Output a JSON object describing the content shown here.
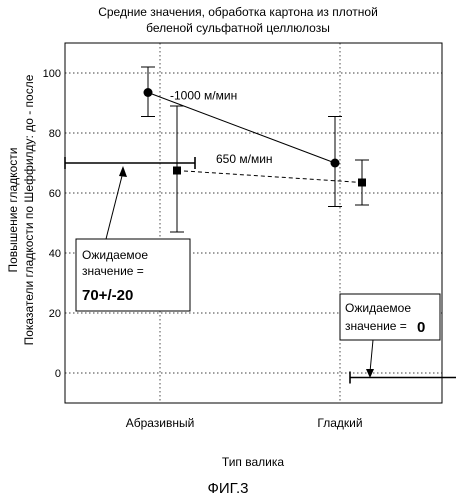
{
  "page": {
    "figure_label": "ФИГ.3"
  },
  "chart_data": {
    "type": "scatter",
    "title_line1": "Средние значения, обработка картона из плотной",
    "title_line2": "беленой сульфатной целлюлозы",
    "xlabel": "Тип валика",
    "ylabel_line1": "Повышение гладкости",
    "ylabel_line2": "Показатели гладкости по Шеффилду: до - после",
    "categories": [
      "Абразивный",
      "Гладкий"
    ],
    "ylim": [
      -10,
      110
    ],
    "yticks": [
      0,
      20,
      40,
      60,
      80,
      100
    ],
    "grid": true,
    "series": [
      {
        "name": "1000 м/мин",
        "label_text": "-1000 м/мин",
        "marker": "circle",
        "line_style": "solid",
        "points": [
          {
            "category": "Абразивный",
            "y": 93.5,
            "err_low": 85.5,
            "err_high": 102
          },
          {
            "category": "Гладкий",
            "y": 70,
            "err_low": 55.5,
            "err_high": 85.5
          }
        ]
      },
      {
        "name": "650 м/мин",
        "label_text": "650 м/мин",
        "marker": "square",
        "line_style": "dashed",
        "points": [
          {
            "category": "Абразивный",
            "y": 67.5,
            "err_low": 47,
            "err_high": 89
          },
          {
            "category": "Гладкий",
            "y": 63.5,
            "err_low": 56,
            "err_high": 71
          }
        ]
      }
    ],
    "expected_ranges": [
      {
        "category": "Абразивный",
        "y": 70,
        "line1": "Ожидаемое",
        "line2": "значение =",
        "line3": "70+/-20"
      },
      {
        "category": "Гладкий",
        "y": -1.5,
        "line1": "Ожидаемое",
        "line2": "значение =",
        "line3": "0"
      }
    ]
  }
}
